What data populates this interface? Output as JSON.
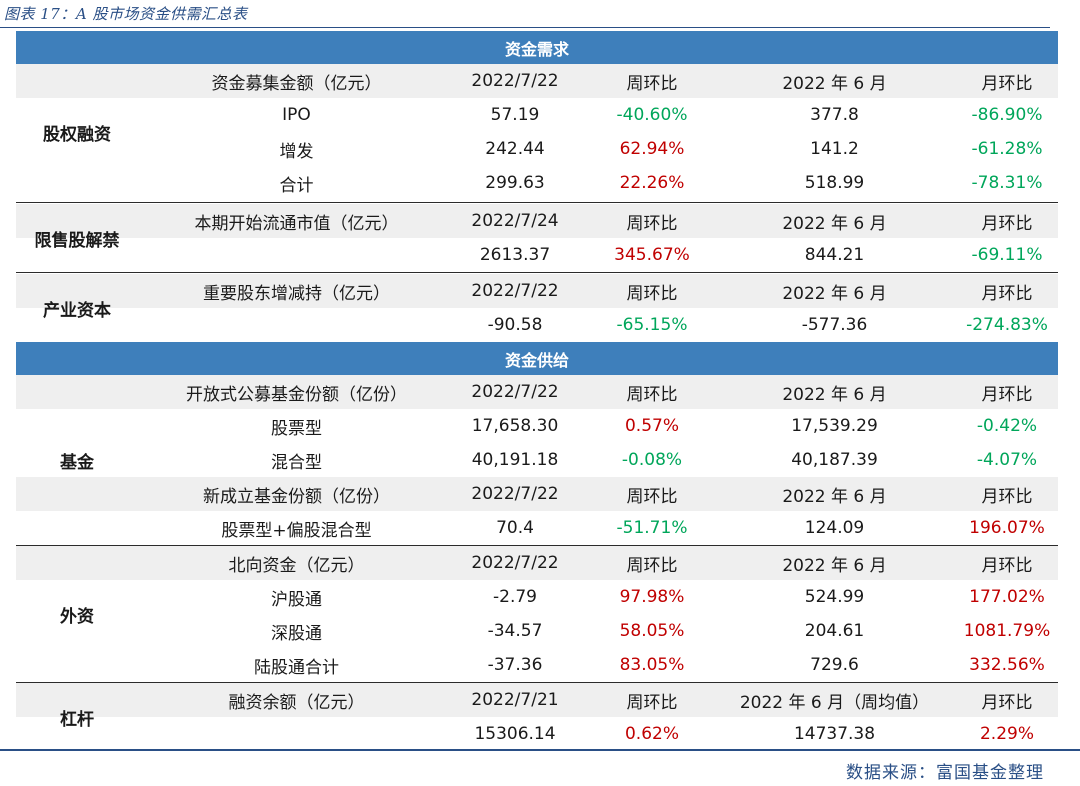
{
  "caption": "图表 17：A 股市场资金供需汇总表",
  "source": "数据来源：富国基金整理",
  "colors": {
    "header_band": "#3e7fbb",
    "positive": "#c00000",
    "negative": "#00a65a",
    "shade": "#efefef"
  },
  "sections": {
    "demand": "资金需求",
    "supply": "资金供给"
  },
  "groups": {
    "equity": "股权融资",
    "unlock": "限售股解禁",
    "industry": "产业资本",
    "fund": "基金",
    "foreign": "外资",
    "leverage": "杠杆"
  },
  "rows": [
    {
      "c1": "资金募集金额（亿元）",
      "c2": "2022/7/22",
      "c3": "周环比",
      "c4": "2022 年 6 月",
      "c5": "月环比"
    },
    {
      "c1": "IPO",
      "c2": "57.19",
      "c3": "-40.60%",
      "c4": "377.8",
      "c5": "-86.90%"
    },
    {
      "c1": "增发",
      "c2": "242.44",
      "c3": "62.94%",
      "c4": "141.2",
      "c5": "-61.28%"
    },
    {
      "c1": "合计",
      "c2": "299.63",
      "c3": "22.26%",
      "c4": "518.99",
      "c5": "-78.31%"
    },
    {
      "c1": "本期开始流通市值（亿元）",
      "c2": "2022/7/24",
      "c3": "周环比",
      "c4": "2022 年 6 月",
      "c5": "月环比"
    },
    {
      "c1": "",
      "c2": "2613.37",
      "c3": "345.67%",
      "c4": "844.21",
      "c5": "-69.11%"
    },
    {
      "c1": "重要股东增减持（亿元）",
      "c2": "2022/7/22",
      "c3": "周环比",
      "c4": "2022 年 6 月",
      "c5": "月环比"
    },
    {
      "c1": "",
      "c2": "-90.58",
      "c3": "-65.15%",
      "c4": "-577.36",
      "c5": "-274.83%"
    },
    {
      "c1": "开放式公募基金份额（亿份）",
      "c2": "2022/7/22",
      "c3": "周环比",
      "c4": "2022 年 6 月",
      "c5": "月环比"
    },
    {
      "c1": "股票型",
      "c2": "17,658.30",
      "c3": "0.57%",
      "c4": "17,539.29",
      "c5": "-0.42%"
    },
    {
      "c1": "混合型",
      "c2": "40,191.18",
      "c3": "-0.08%",
      "c4": "40,187.39",
      "c5": "-4.07%"
    },
    {
      "c1": "新成立基金份额（亿份）",
      "c2": "2022/7/22",
      "c3": "周环比",
      "c4": "2022 年 6 月",
      "c5": "月环比"
    },
    {
      "c1": "股票型+偏股混合型",
      "c2": "70.4",
      "c3": "-51.71%",
      "c4": "124.09",
      "c5": "196.07%"
    },
    {
      "c1": "北向资金（亿元）",
      "c2": "2022/7/22",
      "c3": "周环比",
      "c4": "2022 年 6 月",
      "c5": "月环比"
    },
    {
      "c1": "沪股通",
      "c2": "-2.79",
      "c3": "97.98%",
      "c4": "524.99",
      "c5": "177.02%"
    },
    {
      "c1": "深股通",
      "c2": "-34.57",
      "c3": "58.05%",
      "c4": "204.61",
      "c5": "1081.79%"
    },
    {
      "c1": "陆股通合计",
      "c2": "-37.36",
      "c3": "83.05%",
      "c4": "729.6",
      "c5": "332.56%"
    },
    {
      "c1": "融资余额（亿元）",
      "c2": "2022/7/21",
      "c3": "周环比",
      "c4": "2022 年 6 月（周均值）",
      "c5": "月环比"
    },
    {
      "c1": "",
      "c2": "15306.14",
      "c3": "0.62%",
      "c4": "14737.38",
      "c5": "2.29%"
    }
  ]
}
